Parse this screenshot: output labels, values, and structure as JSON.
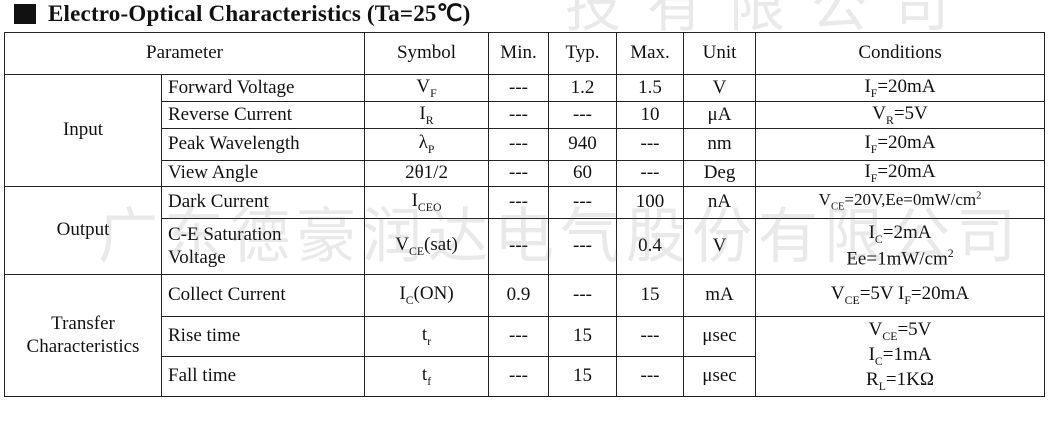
{
  "title": "Electro-Optical Characteristics (Ta=25℃)",
  "watermarks": {
    "main": "广东德豪润达电气股份有限公司",
    "top": "技有限公司"
  },
  "headers": {
    "parameter": "Parameter",
    "symbol": "Symbol",
    "min": "Min.",
    "typ": "Typ.",
    "max": "Max.",
    "unit": "Unit",
    "conditions": "Conditions"
  },
  "groups": {
    "input": "Input",
    "output": "Output",
    "transfer_line1": "Transfer",
    "transfer_line2": "Characteristics"
  },
  "rows": {
    "forward_voltage": {
      "parameter": "Forward Voltage",
      "symbol_main": "V",
      "symbol_sub": "F",
      "min": "---",
      "typ": "1.2",
      "max": "1.5",
      "unit": "V",
      "cond_main": "I",
      "cond_sub": "F",
      "cond_rest": "=20mA"
    },
    "reverse_current": {
      "parameter": "Reverse Current",
      "symbol_main": "I",
      "symbol_sub": "R",
      "min": "---",
      "typ": "---",
      "max": "10",
      "unit": "μA",
      "cond_main": "V",
      "cond_sub": "R",
      "cond_rest": "=5V"
    },
    "peak_wavelength": {
      "parameter": "Peak Wavelength",
      "symbol_main": "λ",
      "symbol_sub": "P",
      "min": "---",
      "typ": "940",
      "max": "---",
      "unit": "nm",
      "cond_main": "I",
      "cond_sub": "F",
      "cond_rest": "=20mA"
    },
    "view_angle": {
      "parameter": "View Angle",
      "symbol": "2θ1/2",
      "min": "---",
      "typ": "60",
      "max": "---",
      "unit": "Deg",
      "cond_main": "I",
      "cond_sub": "F",
      "cond_rest": "=20mA"
    },
    "dark_current": {
      "parameter": "Dark Current",
      "symbol_main": "I",
      "symbol_sub": "CEO",
      "min": "---",
      "typ": "---",
      "max": "100",
      "unit": "nA",
      "cond_main": "V",
      "cond_sub": "CE",
      "cond_rest": "=20V,Ee=0mW/cm",
      "cond_sup": "2"
    },
    "ce_saturation": {
      "parameter_line1": "C-E Saturation",
      "parameter_line2": "Voltage",
      "symbol_main": "V",
      "symbol_sub": "CE",
      "symbol_rest": "(sat)",
      "min": "---",
      "typ": "---",
      "max": "0.4",
      "unit": "V",
      "cond1_main": "I",
      "cond1_sub": "C",
      "cond1_rest": "=2mA",
      "cond2": "Ee=1mW/cm",
      "cond2_sup": "2"
    },
    "collect_current": {
      "parameter": "Collect Current",
      "symbol_main": "I",
      "symbol_sub": "C",
      "symbol_rest": "(ON)",
      "min": "0.9",
      "typ": "---",
      "max": "15",
      "unit": "mA",
      "cond_v": "V",
      "cond_vsub": "CE",
      "cond_vrest": "=5V I",
      "cond_isub": "F",
      "cond_irest": "=20mA"
    },
    "rise_time": {
      "parameter": "Rise time",
      "symbol_main": "t",
      "symbol_sub": "r",
      "min": "---",
      "typ": "15",
      "max": "---",
      "unit": "μsec"
    },
    "fall_time": {
      "parameter": "Fall time",
      "symbol_main": "t",
      "symbol_sub": "f",
      "min": "---",
      "typ": "15",
      "max": "---",
      "unit": "μsec"
    },
    "timing_conditions": {
      "line1_main": "V",
      "line1_sub": "CE",
      "line1_rest": "=5V",
      "line2_main": "I",
      "line2_sub": "C",
      "line2_rest": "=1mA",
      "line3_main": "R",
      "line3_sub": "L",
      "line3_rest": "=1KΩ"
    }
  }
}
